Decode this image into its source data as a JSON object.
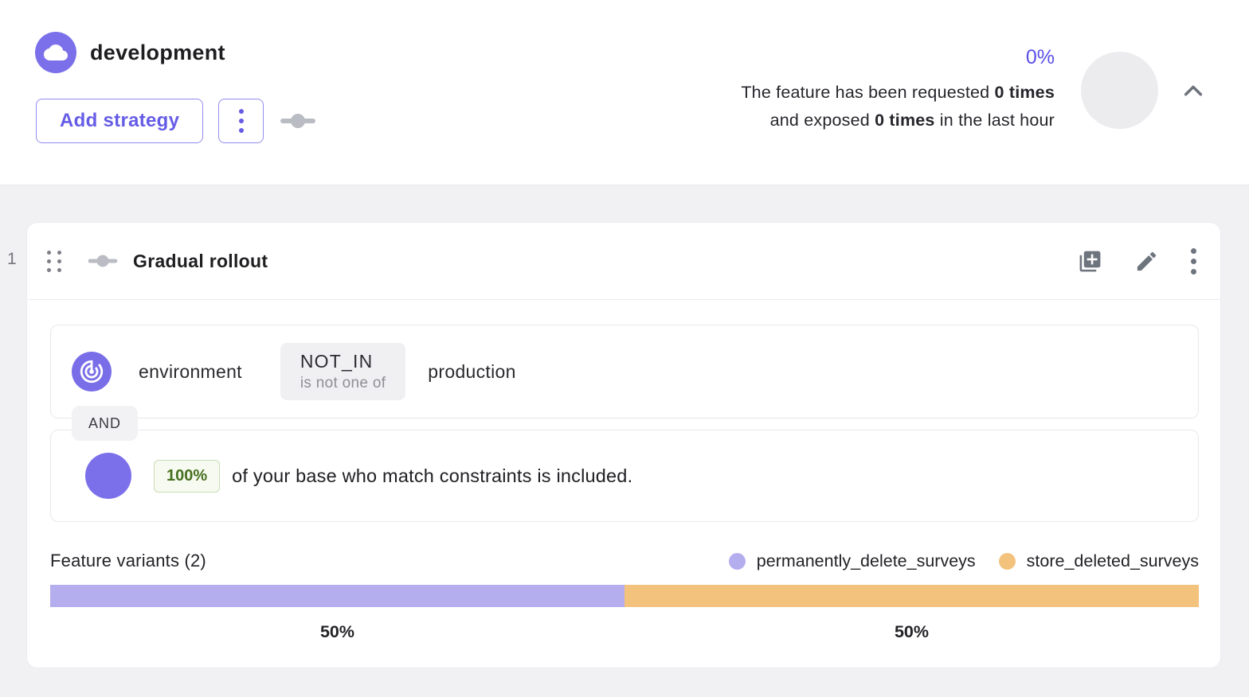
{
  "header": {
    "environment_name": "development",
    "add_strategy_label": "Add strategy",
    "metrics": {
      "percentage": "0%",
      "line1_prefix": "The feature has been requested ",
      "line1_bold": "0 times",
      "line2_prefix": "and exposed ",
      "line2_bold": "0 times",
      "line2_suffix": " in the last hour"
    }
  },
  "strategy": {
    "index": "1",
    "title": "Gradual rollout",
    "constraint": {
      "context_field": "environment",
      "operator": "NOT_IN",
      "operator_description": "is not one of",
      "value": "production"
    },
    "conjunction": "AND",
    "rollout": {
      "percentage": "100%",
      "description": "of your base who match constraints is included."
    },
    "variants": {
      "title": "Feature variants (2)",
      "legend": [
        {
          "name": "permanently_delete_surveys",
          "color": "#b4adee"
        },
        {
          "name": "store_deleted_surveys",
          "color": "#f3c37e"
        }
      ],
      "segments": [
        {
          "label": "50%",
          "value": 50,
          "color": "#b4adee"
        },
        {
          "label": "50%",
          "value": 50,
          "color": "#f3c37e"
        }
      ]
    }
  },
  "colors": {
    "primary_purple": "#655ce6",
    "icon_purple": "#7b70e9",
    "variant_purple": "#b4adee",
    "variant_orange": "#f3c37e",
    "rollout_green_text": "#47701f"
  }
}
